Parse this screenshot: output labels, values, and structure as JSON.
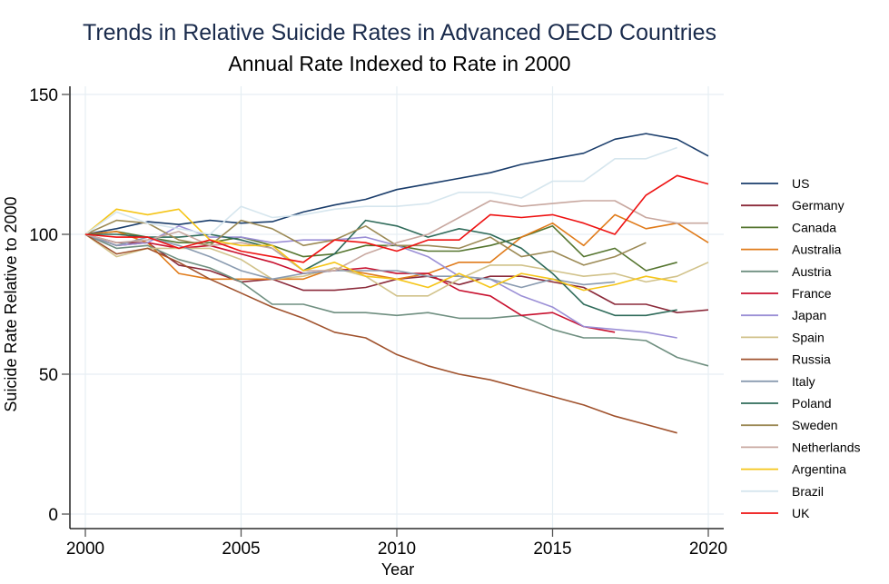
{
  "chart_data": {
    "type": "line",
    "title": "Trends in Relative Suicide Rates in Advanced OECD Countries",
    "subtitle": "Annual Rate Indexed to Rate in 2000",
    "xlabel": "Year",
    "ylabel": "Suicide Rate Relative to 2000",
    "xlim": [
      2000,
      2020
    ],
    "ylim": [
      0,
      150
    ],
    "xticks": [
      2000,
      2005,
      2010,
      2015,
      2020
    ],
    "yticks": [
      0,
      50,
      100,
      150
    ],
    "grid": true,
    "legend_position": "right",
    "x": [
      2000,
      2001,
      2002,
      2003,
      2004,
      2005,
      2006,
      2007,
      2008,
      2009,
      2010,
      2011,
      2012,
      2013,
      2014,
      2015,
      2016,
      2017,
      2018,
      2019,
      2020
    ],
    "series": [
      {
        "name": "US",
        "color": "#1a3d6b",
        "values": [
          100,
          102,
          104.5,
          103.5,
          105,
          104,
          104.5,
          108,
          110.5,
          112.5,
          116,
          118,
          120,
          122,
          125,
          127,
          129,
          134,
          136,
          134,
          128
        ]
      },
      {
        "name": "Germany",
        "color": "#8b2a3a",
        "values": [
          100,
          97,
          97,
          89,
          87,
          83,
          84,
          80,
          80,
          81,
          84,
          85,
          82,
          85,
          85,
          83,
          81,
          75,
          75,
          72,
          73
        ]
      },
      {
        "name": "Canada",
        "color": "#55752f",
        "values": [
          100,
          101,
          99,
          97,
          97,
          99,
          96,
          92,
          93,
          96,
          96,
          94,
          94,
          96,
          99,
          103,
          92,
          95,
          87,
          90
        ]
      },
      {
        "name": "Australia",
        "color": "#e07b1a",
        "values": [
          100,
          101,
          97,
          86,
          84,
          84,
          84,
          84,
          88,
          86,
          84,
          86,
          90,
          90,
          99,
          104,
          96,
          107,
          102,
          104,
          97
        ]
      },
      {
        "name": "Austria",
        "color": "#6f8f80",
        "values": [
          100,
          95,
          96,
          91,
          88,
          83,
          75,
          75,
          72,
          72,
          71,
          72,
          70,
          70,
          71,
          66,
          63,
          63,
          62,
          56,
          53
        ]
      },
      {
        "name": "France",
        "color": "#c8102e",
        "values": [
          100,
          96,
          97,
          95,
          96,
          93,
          90,
          86,
          87,
          88,
          86,
          86,
          80,
          78,
          71,
          72,
          67,
          65
        ]
      },
      {
        "name": "Japan",
        "color": "#9b8fd6",
        "values": [
          100,
          96,
          97,
          103,
          99,
          99,
          97,
          98,
          98,
          99,
          96,
          92,
          85,
          84,
          78,
          74,
          67,
          66,
          65,
          63
        ]
      },
      {
        "name": "Spain",
        "color": "#d1c28a",
        "values": [
          100,
          92,
          95,
          95,
          95,
          91,
          84,
          85,
          88,
          85,
          78,
          78,
          84,
          89,
          89,
          87,
          85,
          86,
          83,
          85,
          90
        ]
      },
      {
        "name": "Russia",
        "color": "#a0522d",
        "values": [
          100,
          93,
          95,
          90,
          84,
          79,
          74,
          70,
          65,
          63,
          57,
          53,
          50,
          48,
          45,
          42,
          39,
          35,
          32,
          29
        ]
      },
      {
        "name": "Italy",
        "color": "#8a9bb0",
        "values": [
          100,
          96,
          99,
          96,
          92,
          87,
          84,
          86,
          87,
          87,
          87,
          85,
          85,
          84,
          81,
          84,
          82,
          83
        ]
      },
      {
        "name": "Poland",
        "color": "#2f6b5a",
        "values": [
          100,
          100,
          99,
          99,
          100,
          98,
          95,
          87,
          93,
          105,
          103,
          99,
          102,
          100,
          95,
          86,
          75,
          71,
          71,
          73
        ]
      },
      {
        "name": "Sweden",
        "color": "#9c8a55",
        "values": [
          100,
          105,
          104,
          98,
          96,
          105,
          102,
          96,
          98,
          103,
          96,
          96,
          95,
          99,
          92,
          94,
          89,
          92,
          97
        ]
      },
      {
        "name": "Netherlands",
        "color": "#c8a8a0",
        "values": [
          100,
          97,
          98,
          101,
          96,
          97,
          95,
          87,
          87,
          93,
          97,
          100,
          106,
          112,
          110,
          111,
          112,
          112,
          106,
          104,
          104
        ]
      },
      {
        "name": "Argentina",
        "color": "#f5c518",
        "values": [
          100,
          109,
          107,
          109,
          98,
          96,
          96,
          87,
          90,
          85,
          84,
          81,
          86,
          81,
          86,
          84,
          80,
          82,
          85,
          83
        ]
      },
      {
        "name": "Brazil",
        "color": "#d6e6ee",
        "values": [
          100,
          108,
          104,
          102,
          100,
          110,
          106,
          107,
          109,
          110,
          110,
          111,
          115,
          115,
          113,
          119,
          119,
          127,
          127,
          131
        ]
      },
      {
        "name": "UK",
        "color": "#ee1111",
        "values": [
          100,
          99,
          99,
          95,
          98,
          94,
          92,
          90,
          98,
          97,
          94,
          98,
          98,
          107,
          106,
          107,
          104,
          100,
          114,
          121,
          118
        ]
      }
    ]
  }
}
